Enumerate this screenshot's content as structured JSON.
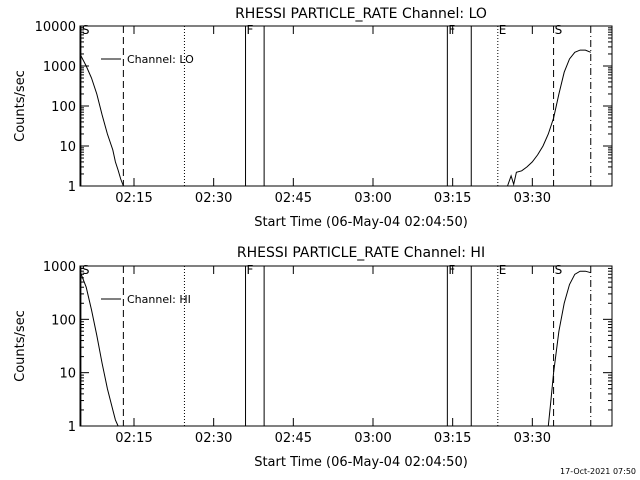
{
  "footer_timestamp": "17-Oct-2021 07:50",
  "chart_data": [
    {
      "type": "line",
      "title": "RHESSI PARTICLE_RATE Channel: LO",
      "xlabel": "Start Time (06-May-04 02:04:50)",
      "ylabel": "Counts/sec",
      "x_ticks": [
        "02:15",
        "02:30",
        "02:45",
        "03:00",
        "03:15",
        "03:30"
      ],
      "y_scale": "log",
      "y_ticks": [
        "1",
        "10",
        "100",
        "1000",
        "10000"
      ],
      "ylim": [
        1,
        10000
      ],
      "xlim": [
        "02:04:50",
        "03:45:00"
      ],
      "legend": "Channel: LO",
      "legend_position": "top-left",
      "markers": [
        {
          "label": "S",
          "time": "02:05",
          "style": "solid"
        },
        {
          "label": "",
          "time": "02:13:00",
          "style": "dashed"
        },
        {
          "label": "",
          "time": "02:24:30",
          "style": "dotted"
        },
        {
          "label": "F",
          "time": "02:36:00",
          "style": "solid"
        },
        {
          "label": "",
          "time": "02:39:30",
          "style": "solid"
        },
        {
          "label": "F",
          "time": "03:14:00",
          "style": "solid"
        },
        {
          "label": "",
          "time": "03:18:30",
          "style": "solid"
        },
        {
          "label": "E",
          "time": "03:23:30",
          "style": "dotted"
        },
        {
          "label": "S",
          "time": "03:34:00",
          "style": "dashed"
        },
        {
          "label": "",
          "time": "03:41:00",
          "style": "dashdot"
        }
      ],
      "series": [
        {
          "x": [
            "02:04:50",
            "02:06:00",
            "02:07:00",
            "02:08:00",
            "02:09:00",
            "02:10:00",
            "02:11:00",
            "02:11:30",
            "02:12:00",
            "02:12:30",
            "02:13:00"
          ],
          "values": [
            2000,
            1000,
            500,
            200,
            60,
            20,
            8,
            4,
            2.5,
            1.5,
            1
          ]
        },
        {
          "x": [
            "03:25:20",
            "03:26:00",
            "03:26:30",
            "03:27:00",
            "03:28:00",
            "03:29:00",
            "03:30:00",
            "03:31:00",
            "03:32:00",
            "03:33:00",
            "03:34:00",
            "03:35:00",
            "03:36:00",
            "03:37:00",
            "03:38:00",
            "03:39:00",
            "03:40:00",
            "03:41:00"
          ],
          "values": [
            1,
            1.8,
            1.1,
            2.2,
            2.4,
            3,
            4,
            6,
            10,
            20,
            50,
            200,
            700,
            1500,
            2200,
            2500,
            2500,
            2200
          ]
        }
      ]
    },
    {
      "type": "line",
      "title": "RHESSI PARTICLE_RATE Channel: HI",
      "xlabel": "Start Time (06-May-04 02:04:50)",
      "ylabel": "Counts/sec",
      "x_ticks": [
        "02:15",
        "02:30",
        "02:45",
        "03:00",
        "03:15",
        "03:30"
      ],
      "y_scale": "log",
      "y_ticks": [
        "1",
        "10",
        "100",
        "1000"
      ],
      "ylim": [
        1,
        1000
      ],
      "xlim": [
        "02:04:50",
        "03:45:00"
      ],
      "legend": "Channel: HI",
      "legend_position": "top-left",
      "markers": [
        {
          "label": "S",
          "time": "02:05",
          "style": "solid"
        },
        {
          "label": "",
          "time": "02:13:00",
          "style": "dashed"
        },
        {
          "label": "",
          "time": "02:24:30",
          "style": "dotted"
        },
        {
          "label": "F",
          "time": "02:36:00",
          "style": "solid"
        },
        {
          "label": "",
          "time": "02:39:30",
          "style": "solid"
        },
        {
          "label": "F",
          "time": "03:14:00",
          "style": "solid"
        },
        {
          "label": "",
          "time": "03:18:30",
          "style": "solid"
        },
        {
          "label": "E",
          "time": "03:23:30",
          "style": "dotted"
        },
        {
          "label": "S",
          "time": "03:34:00",
          "style": "dashed"
        },
        {
          "label": "",
          "time": "03:41:00",
          "style": "dashdot"
        }
      ],
      "series": [
        {
          "x": [
            "02:04:50",
            "02:06:00",
            "02:07:00",
            "02:08:00",
            "02:09:00",
            "02:10:00",
            "02:11:00",
            "02:11:30",
            "02:12:00"
          ],
          "values": [
            800,
            400,
            150,
            50,
            15,
            5,
            2,
            1.3,
            1
          ]
        },
        {
          "x": [
            "03:33:00",
            "03:33:30",
            "03:34:00",
            "03:35:00",
            "03:36:00",
            "03:37:00",
            "03:38:00",
            "03:39:00",
            "03:40:00",
            "03:41:00"
          ],
          "values": [
            1,
            3,
            10,
            60,
            200,
            450,
            700,
            800,
            800,
            750
          ]
        }
      ]
    }
  ]
}
